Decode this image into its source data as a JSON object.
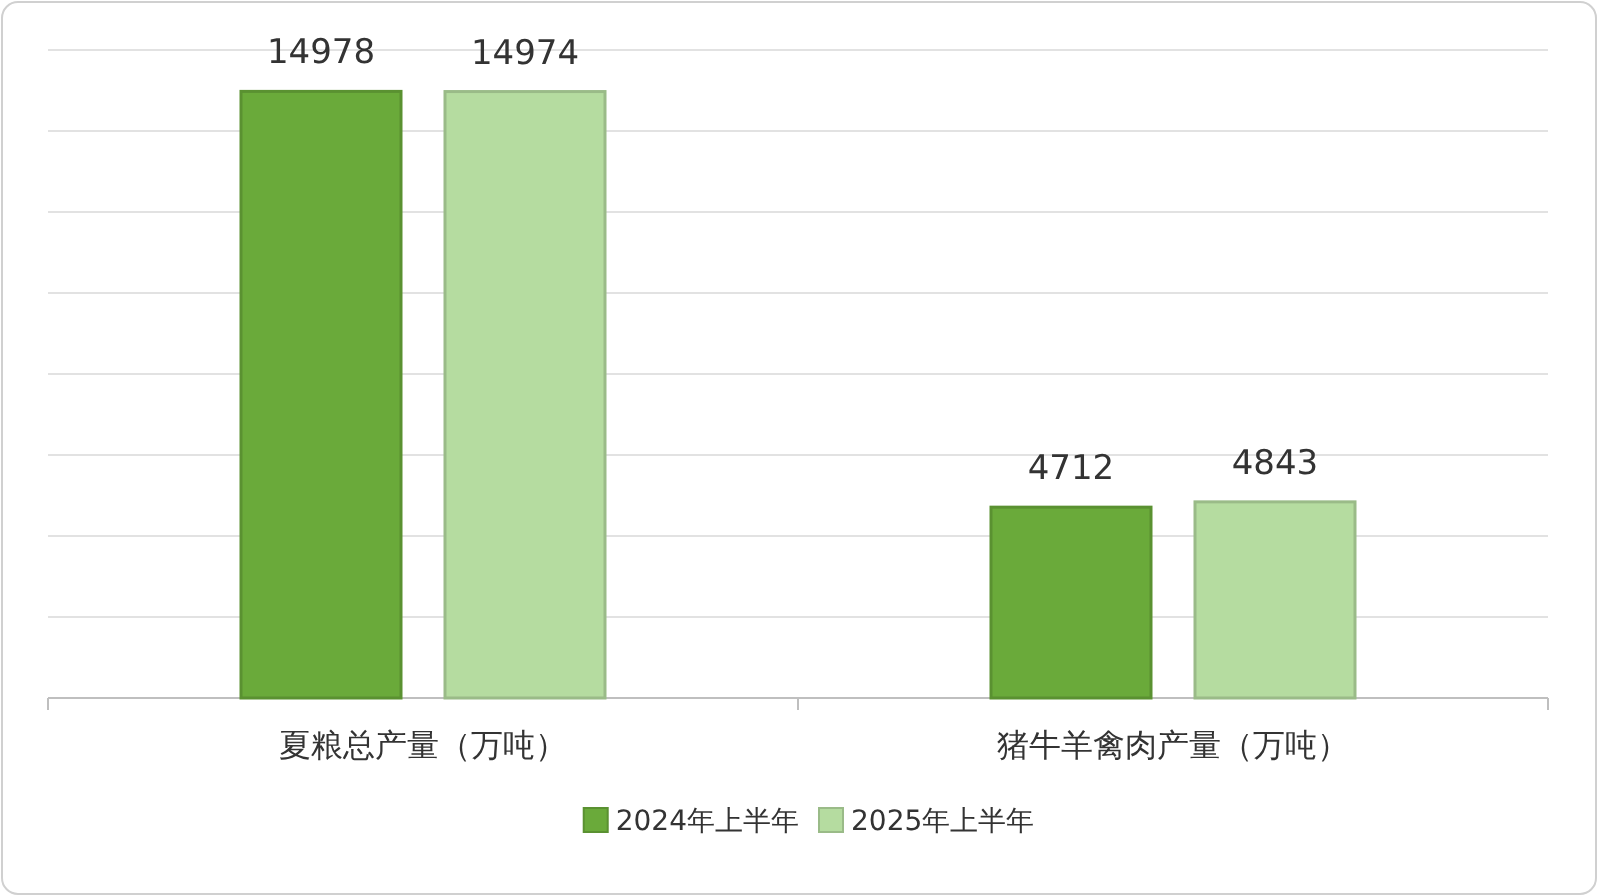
{
  "chart_data": {
    "type": "bar",
    "categories": [
      "夏粮总产量（万吨）",
      "猪牛羊禽肉产量（万吨）"
    ],
    "series": [
      {
        "name": "2024年上半年",
        "color": "#6aaa3a",
        "values": [
          14978,
          4712
        ]
      },
      {
        "name": "2025年上半年",
        "color": "#b5dca0",
        "values": [
          14974,
          4843
        ]
      }
    ],
    "ylim": [
      0,
      16000
    ],
    "yticks": [
      {
        "value": 0,
        "label": null
      },
      {
        "value": 2000,
        "label": null
      },
      {
        "value": 4000,
        "label": null
      },
      {
        "value": 6000,
        "label": null
      },
      {
        "value": 8000,
        "label": null
      },
      {
        "value": 10000,
        "label": null
      },
      {
        "value": 12000,
        "label": null
      },
      {
        "value": 14000,
        "label": null
      },
      {
        "value": 16000,
        "label": null
      }
    ],
    "grid": "y",
    "data_labels": true,
    "legend": "bottom"
  }
}
